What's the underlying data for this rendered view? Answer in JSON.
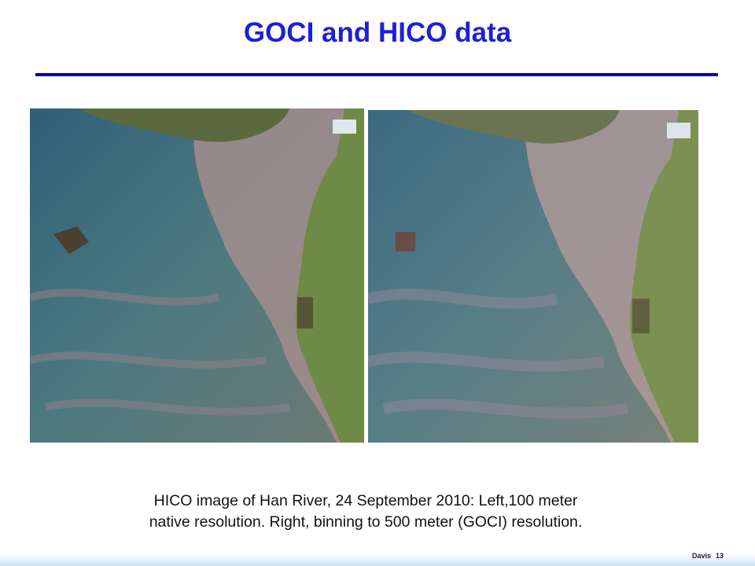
{
  "slide": {
    "title": "GOCI and HICO data",
    "caption": [
      "HICO image of Han River, 24 September 2010: Left,100 meter",
      "native resolution. Right, binning to 500 meter (GOCI) resolution."
    ],
    "footer": {
      "author": "Davis",
      "page": 13
    }
  }
}
